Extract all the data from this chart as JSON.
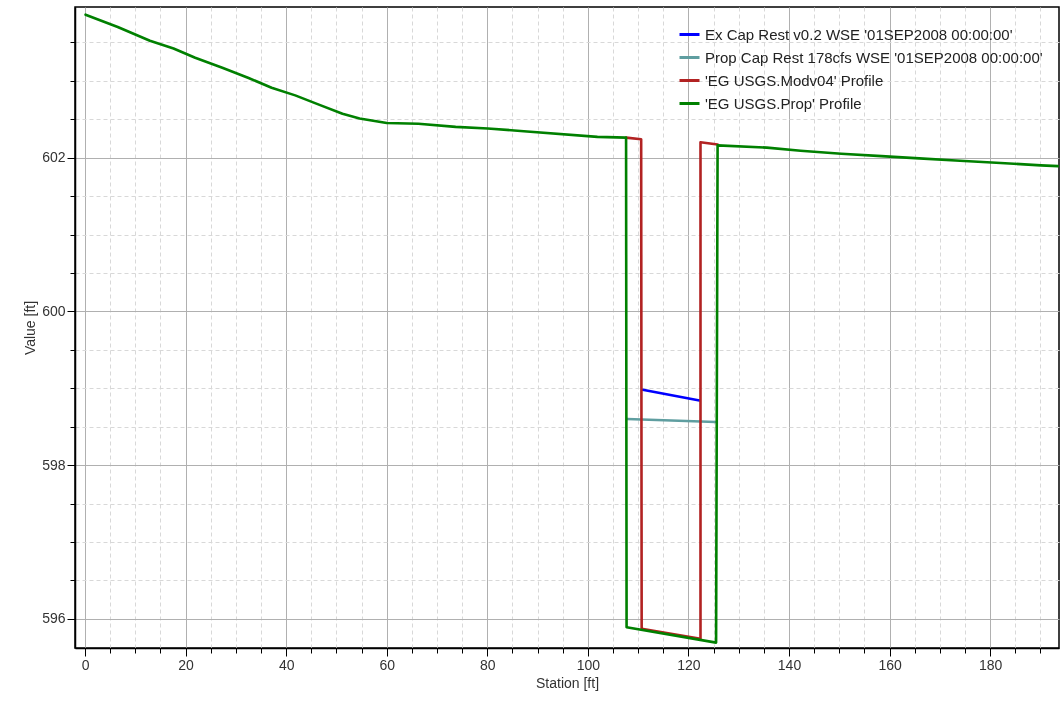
{
  "chart_data": {
    "type": "line",
    "xlabel": "Station [ft]",
    "ylabel": "Value [ft]",
    "xlim": [
      -2,
      193.7
    ],
    "ylim": [
      595.62,
      603.96
    ],
    "xticks": [
      0,
      {
        "value": 5,
        "label": null
      },
      {
        "value": 10,
        "label": null
      },
      {
        "value": 15,
        "label": null
      },
      20,
      {
        "value": 25,
        "label": null
      },
      {
        "value": 30,
        "label": null
      },
      {
        "value": 35,
        "label": null
      },
      40,
      {
        "value": 45,
        "label": null
      },
      {
        "value": 50,
        "label": null
      },
      {
        "value": 55,
        "label": null
      },
      60,
      {
        "value": 65,
        "label": null
      },
      {
        "value": 70,
        "label": null
      },
      {
        "value": 75,
        "label": null
      },
      80,
      {
        "value": 85,
        "label": null
      },
      {
        "value": 90,
        "label": null
      },
      {
        "value": 95,
        "label": null
      },
      100,
      {
        "value": 105,
        "label": null
      },
      {
        "value": 110,
        "label": null
      },
      {
        "value": 115,
        "label": null
      },
      120,
      {
        "value": 125,
        "label": null
      },
      {
        "value": 130,
        "label": null
      },
      {
        "value": 135,
        "label": null
      },
      140,
      {
        "value": 145,
        "label": null
      },
      {
        "value": 150,
        "label": null
      },
      {
        "value": 155,
        "label": null
      },
      160,
      {
        "value": 165,
        "label": null
      },
      {
        "value": 170,
        "label": null
      },
      {
        "value": 175,
        "label": null
      },
      180,
      {
        "value": 185,
        "label": null
      },
      {
        "value": 190,
        "label": null
      }
    ],
    "yticks": [
      596,
      {
        "value": 596.5,
        "label": null
      },
      {
        "value": 597,
        "label": null
      },
      {
        "value": 597.5,
        "label": null
      },
      598,
      {
        "value": 598.5,
        "label": null
      },
      {
        "value": 599,
        "label": null
      },
      {
        "value": 599.5,
        "label": null
      },
      600,
      {
        "value": 600.5,
        "label": null
      },
      {
        "value": 601,
        "label": null
      },
      {
        "value": 601.5,
        "label": null
      },
      602,
      {
        "value": 602.5,
        "label": null
      },
      {
        "value": 603,
        "label": null
      },
      {
        "value": 603.5,
        "label": null
      }
    ],
    "grid": true,
    "legend": "top right",
    "series": [
      {
        "name": "Ex Cap Rest v0.2 WSE '01SEP2008 00:00:00'",
        "color": "#0000ff",
        "x": [
          110.9,
          122.2
        ],
        "values": [
          598.98,
          598.84
        ]
      },
      {
        "name": "Prop Cap Rest 178cfs WSE '01SEP2008 00:00:00'",
        "color": "#5f9ea0",
        "x": [
          107.8,
          125.4
        ],
        "values": [
          598.6,
          598.56
        ]
      },
      {
        "name": "'EG USGS.Modv04' Profile",
        "color": "#b22222",
        "x": [
          107.6,
          110.6,
          110.7,
          122.4,
          122.4,
          125.8
        ],
        "values": [
          602.26,
          602.24,
          595.87,
          595.74,
          602.2,
          602.17
        ]
      },
      {
        "name": "'EG USGS.Prop' Profile",
        "color": "#008000",
        "x": [
          0.1,
          6.5,
          12.9,
          17.6,
          21.9,
          27.3,
          32.4,
          37.1,
          41.8,
          46.5,
          51.2,
          54.6,
          60,
          66.3,
          73.7,
          80.1,
          87.9,
          101.9,
          107.6,
          107.7,
          125.5,
          125.8,
          135.6,
          142.3,
          150.4,
          158.4,
          165.9,
          174,
          182.1,
          190.1,
          193.5
        ],
        "values": [
          603.86,
          603.7,
          603.52,
          603.42,
          603.3,
          603.17,
          603.04,
          602.91,
          602.81,
          602.69,
          602.57,
          602.51,
          602.45,
          602.44,
          602.4,
          602.38,
          602.34,
          602.27,
          602.26,
          595.89,
          595.69,
          602.16,
          602.13,
          602.09,
          602.05,
          602.02,
          601.99,
          601.96,
          601.93,
          601.9,
          601.89
        ]
      }
    ]
  }
}
